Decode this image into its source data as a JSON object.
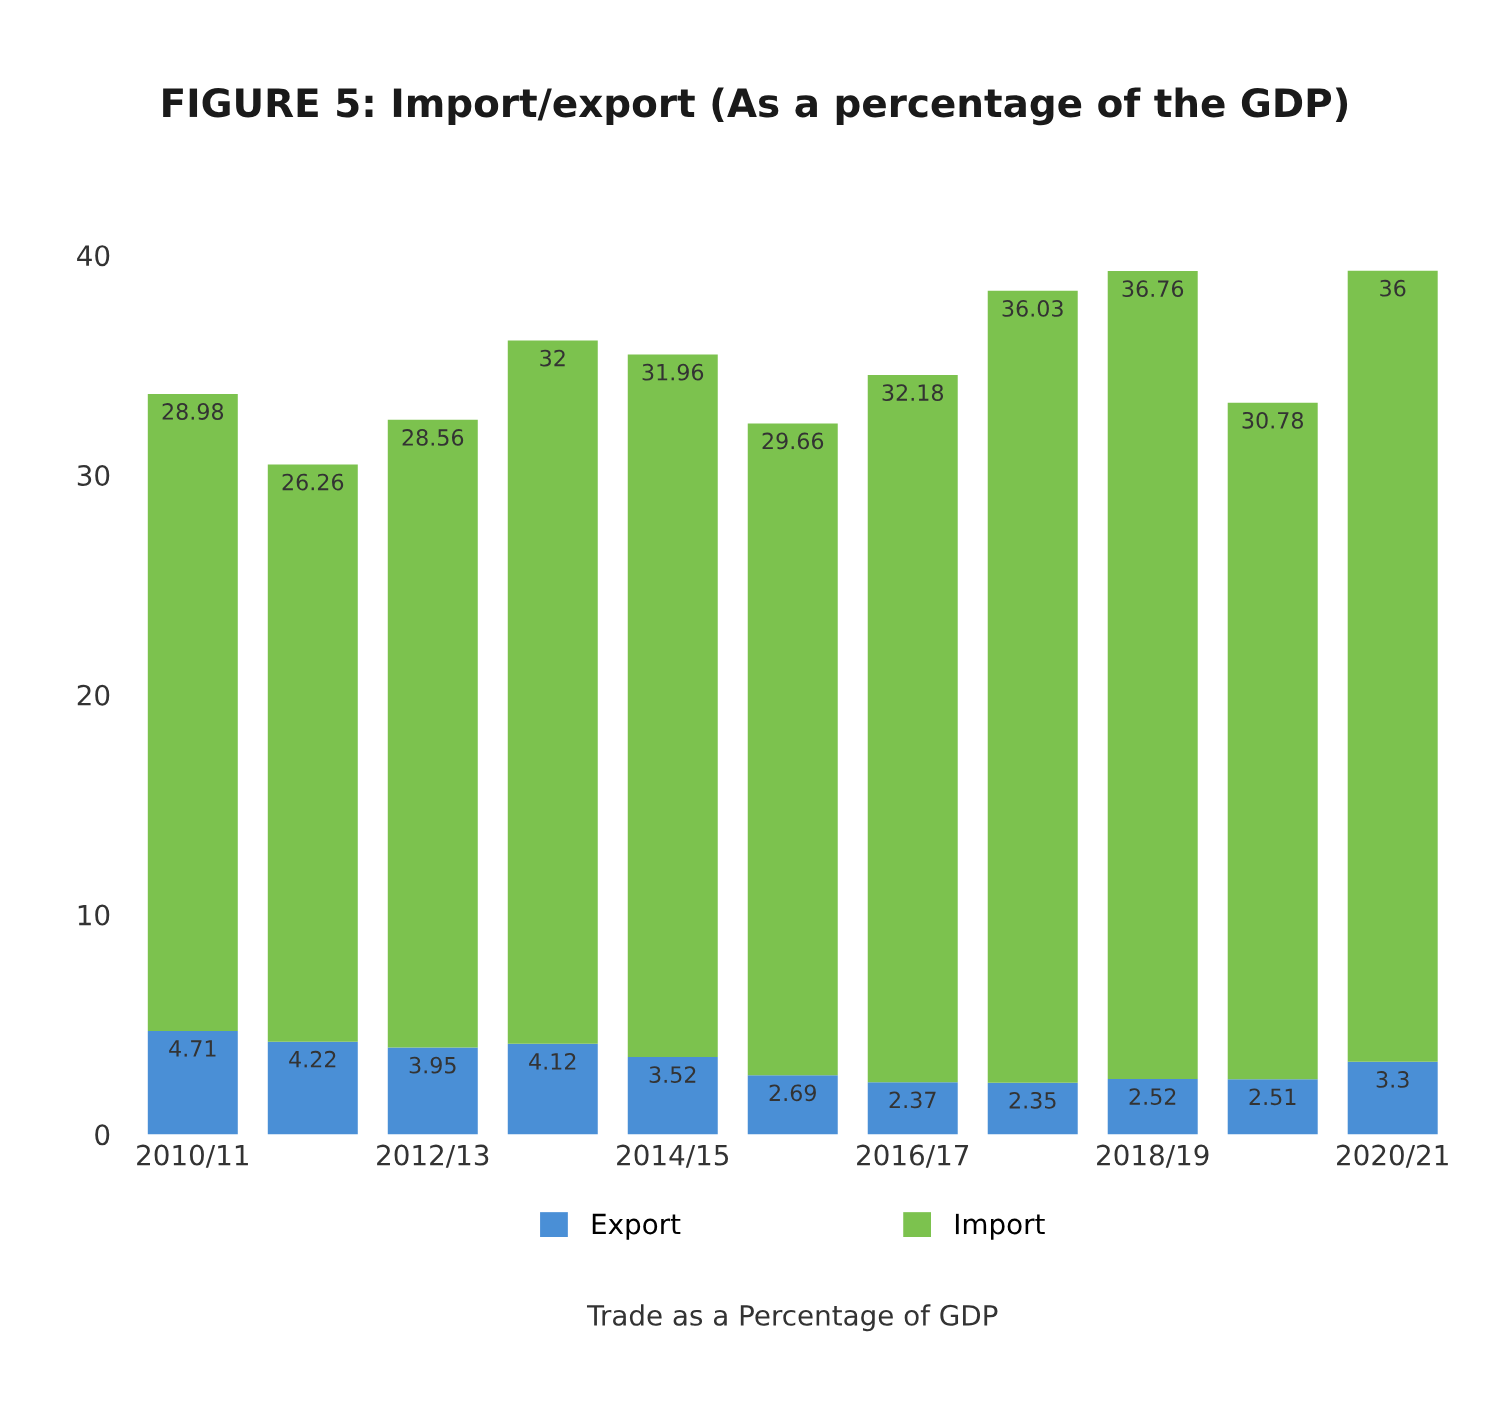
{
  "chart_data": {
    "type": "bar",
    "title": "FIGURE 5: Import/export (As a percentage of the GDP)",
    "xlabel": "Trade as a Percentage of GDP",
    "categories": [
      "2010/11",
      null,
      "2012/13",
      null,
      "2014/15",
      null,
      "2016/17",
      null,
      "2018/19",
      null,
      "2020/21"
    ],
    "stacked": true,
    "data_labels": true,
    "legend": "bottom",
    "grid": false,
    "ylim": [
      0,
      40
    ],
    "yticks": [
      0,
      10,
      20,
      30,
      40
    ],
    "series": [
      {
        "name": "Export",
        "color": "#4a8fd6",
        "values": [
          4.71,
          4.22,
          3.95,
          4.12,
          3.52,
          2.69,
          2.37,
          2.35,
          2.52,
          2.51,
          3.3
        ]
      },
      {
        "name": "Import",
        "color": "#7cc24e",
        "values": [
          28.98,
          26.26,
          28.56,
          32,
          31.96,
          29.66,
          32.18,
          36.03,
          36.76,
          30.78,
          36
        ]
      }
    ]
  }
}
